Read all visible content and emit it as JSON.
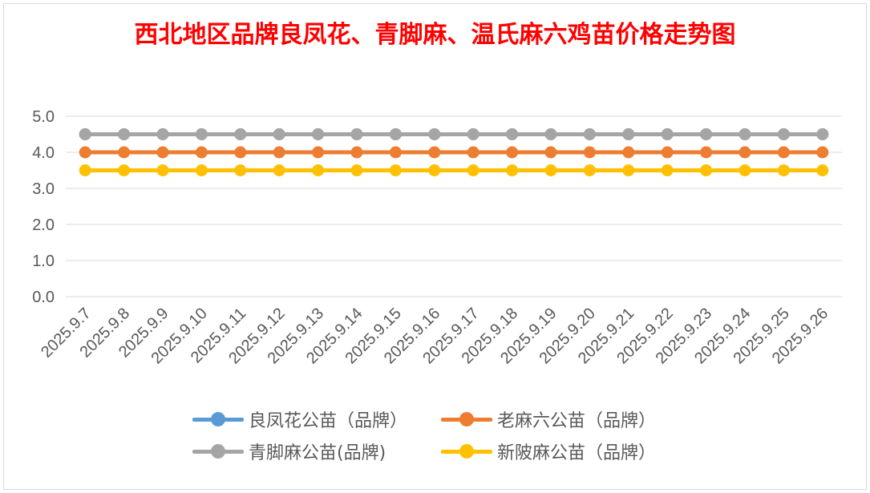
{
  "chart_data": {
    "type": "line",
    "title": "西北地区品牌良凤花、青脚麻、温氏麻六鸡苗价格走势图",
    "xlabel": "",
    "ylabel": "",
    "ylim": [
      0,
      5
    ],
    "yticks": [
      "0.0",
      "1.0",
      "2.0",
      "3.0",
      "4.0",
      "5.0"
    ],
    "categories": [
      "2025.9.7",
      "2025.9.8",
      "2025.9.9",
      "2025.9.10",
      "2025.9.11",
      "2025.9.12",
      "2025.9.13",
      "2025.9.14",
      "2025.9.15",
      "2025.9.16",
      "2025.9.17",
      "2025.9.18",
      "2025.9.19",
      "2025.9.20",
      "2025.9.21",
      "2025.9.22",
      "2025.9.23",
      "2025.9.24",
      "2025.9.25",
      "2025.9.26"
    ],
    "grid": true,
    "legend_position": "bottom",
    "series": [
      {
        "name": "良凤花公苗（品牌）",
        "color": "#5b9bd5",
        "values": [
          4.5,
          4.5,
          4.5,
          4.5,
          4.5,
          4.5,
          4.5,
          4.5,
          4.5,
          4.5,
          4.5,
          4.5,
          4.5,
          4.5,
          4.5,
          4.5,
          4.5,
          4.5,
          4.5,
          4.5
        ]
      },
      {
        "name": "老麻六公苗（品牌）",
        "color": "#ed7d31",
        "values": [
          4.0,
          4.0,
          4.0,
          4.0,
          4.0,
          4.0,
          4.0,
          4.0,
          4.0,
          4.0,
          4.0,
          4.0,
          4.0,
          4.0,
          4.0,
          4.0,
          4.0,
          4.0,
          4.0,
          4.0
        ]
      },
      {
        "name": "青脚麻公苗(品牌)",
        "color": "#a5a5a5",
        "values": [
          4.5,
          4.5,
          4.5,
          4.5,
          4.5,
          4.5,
          4.5,
          4.5,
          4.5,
          4.5,
          4.5,
          4.5,
          4.5,
          4.5,
          4.5,
          4.5,
          4.5,
          4.5,
          4.5,
          4.5
        ]
      },
      {
        "name": "新陂麻公苗（品牌）",
        "color": "#ffc000",
        "values": [
          3.5,
          3.5,
          3.5,
          3.5,
          3.5,
          3.5,
          3.5,
          3.5,
          3.5,
          3.5,
          3.5,
          3.5,
          3.5,
          3.5,
          3.5,
          3.5,
          3.5,
          3.5,
          3.5,
          3.5
        ]
      }
    ]
  },
  "legend": {
    "items": [
      {
        "label": "良凤花公苗（品牌）",
        "color": "#5b9bd5"
      },
      {
        "label": "老麻六公苗（品牌）",
        "color": "#ed7d31"
      },
      {
        "label": "青脚麻公苗(品牌)",
        "color": "#a5a5a5"
      },
      {
        "label": "新陂麻公苗（品牌）",
        "color": "#ffc000"
      }
    ]
  }
}
